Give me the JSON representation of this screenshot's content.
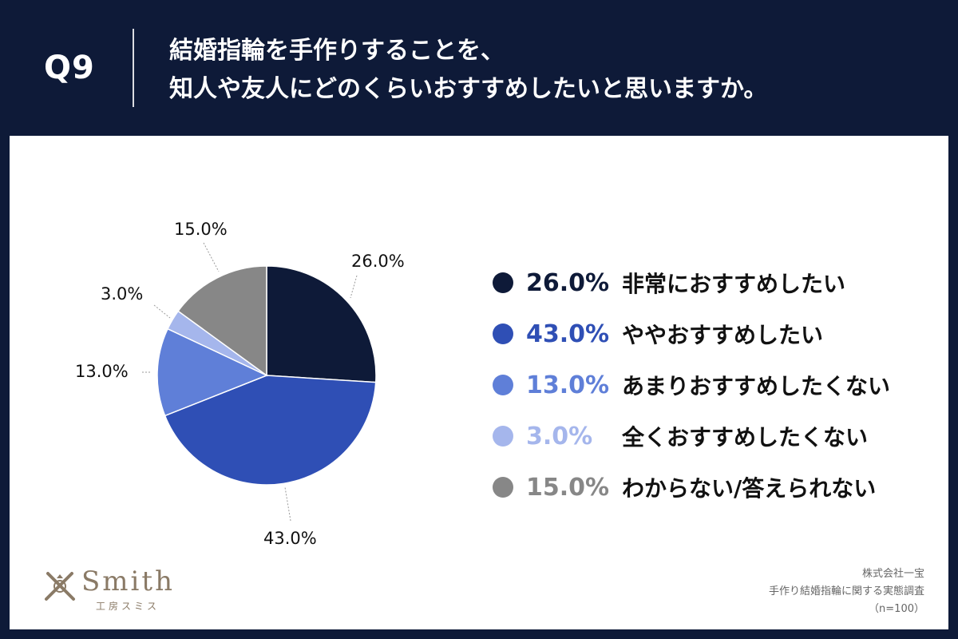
{
  "header": {
    "question_label": "Q9",
    "question_line1": "結婚指輪を手作りすることを、",
    "question_line2": "知人や友人にどのくらいおすすめしたいと思いますか。"
  },
  "chart_data": {
    "type": "pie",
    "title": "結婚指輪を手作りすることを、知人や友人にどのくらいおすすめしたいと思いますか。",
    "categories": [
      "非常におすすめしたい",
      "ややおすすめしたい",
      "あまりおすすめしたくない",
      "全くおすすめしたくない",
      "わからない/答えられない"
    ],
    "values": [
      26.0,
      43.0,
      13.0,
      3.0,
      15.0
    ],
    "value_labels": [
      "26.0%",
      "43.0%",
      "13.0%",
      "3.0%",
      "15.0%"
    ],
    "colors": [
      "#0e1a38",
      "#2f4fb5",
      "#5f7fd8",
      "#a5b6ec",
      "#878787"
    ],
    "legend_position": "right"
  },
  "logo": {
    "name": "Smith",
    "sub": "工房スミス"
  },
  "source": {
    "company": "株式会社一宝",
    "survey": "手作り結婚指輪に関する実態調査",
    "sample": "（n=100）"
  }
}
